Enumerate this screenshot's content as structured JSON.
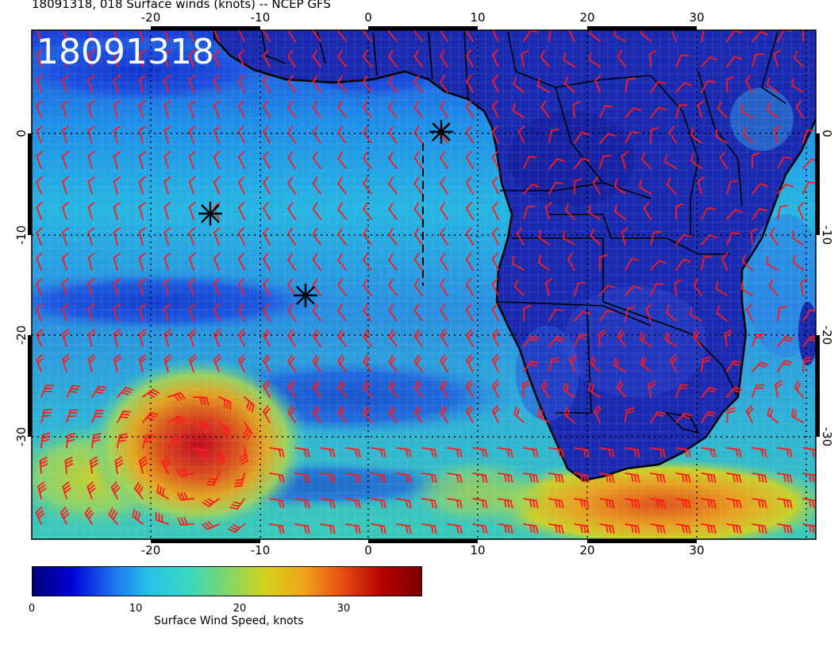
{
  "title": "18091318, 018 Surface winds (knots) -- NCEP GFS",
  "map_stamp": "18091318",
  "top_longitude_labels": [
    "-20",
    "-10",
    "0",
    "10",
    "20",
    "30"
  ],
  "bottom_longitude_labels": [
    "-20",
    "-10",
    "0",
    "10",
    "20",
    "30"
  ],
  "left_latitude_labels": [
    "0",
    "-10",
    "-20",
    "-30"
  ],
  "right_latitude_labels": [
    "0",
    "-10",
    "-20",
    "-30"
  ],
  "colorbar": {
    "ticks": [
      "0",
      "10",
      "20",
      "30"
    ],
    "label": "Surface Wind Speed, knots",
    "colors": [
      "#00007a",
      "#0000d6",
      "#1a6cf2",
      "#27c3e6",
      "#38d8c0",
      "#7fd66a",
      "#d6d21a",
      "#f2a21a",
      "#e64a12",
      "#b40000",
      "#7a0000"
    ]
  },
  "colors": {
    "barb": "#ff1a1a",
    "land_base": "#1a2ab0",
    "ocean_base": "#2a7fe6",
    "marker": "#000000"
  },
  "icons": {
    "marker": "asterisk-icon"
  }
}
